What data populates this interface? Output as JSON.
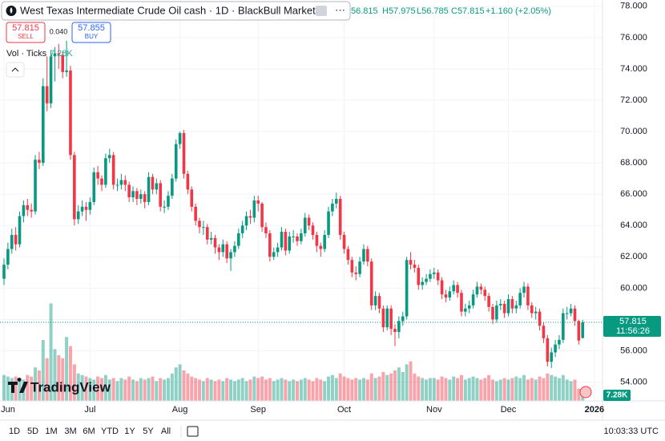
{
  "chart_data": {
    "type": "candlestick",
    "title": "West Texas Intermediate Crude Oil cash · 1D · BlackBull Markets",
    "header": {
      "open_value": "56.815",
      "high": "H57.975",
      "low": "L56.785",
      "close": "C57.815",
      "change": "+1.160 (+2.05%)"
    },
    "sell_price": "57.815",
    "sell_label": "SELL",
    "spread": "0.040",
    "buy_price": "57.855",
    "buy_label": "BUY",
    "volume_title": "Vol · Ticks",
    "last_volume_label": "7.28K",
    "countdown": "11:56:26",
    "categories": [
      "Jun",
      null,
      null,
      null,
      null,
      null,
      null,
      null,
      null,
      null,
      null,
      null,
      null,
      null,
      null,
      null,
      null,
      null,
      null,
      null,
      null,
      null,
      "Jul",
      null,
      null,
      null,
      null,
      null,
      null,
      null,
      null,
      null,
      null,
      null,
      null,
      null,
      null,
      null,
      null,
      null,
      null,
      null,
      null,
      null,
      null,
      "Aug",
      null,
      null,
      null,
      null,
      null,
      null,
      null,
      null,
      null,
      null,
      null,
      null,
      null,
      null,
      null,
      null,
      null,
      null,
      null,
      "Sep",
      null,
      null,
      null,
      null,
      null,
      null,
      null,
      null,
      null,
      null,
      null,
      null,
      null,
      null,
      null,
      null,
      null,
      null,
      null,
      null,
      null,
      "Oct",
      null,
      null,
      null,
      null,
      null,
      null,
      null,
      null,
      null,
      null,
      null,
      null,
      null,
      null,
      null,
      null,
      null,
      null,
      null,
      null,
      null,
      null,
      "Nov",
      null,
      null,
      null,
      null,
      null,
      null,
      null,
      null,
      null,
      null,
      null,
      null,
      null,
      null,
      null,
      null,
      null,
      null,
      "Dec",
      null,
      null,
      null,
      null,
      null,
      null,
      null,
      null,
      null,
      null,
      null,
      null,
      null,
      null,
      null,
      null,
      null,
      null,
      null,
      null,
      null,
      "2026"
    ],
    "open": [
      60.6,
      61.5,
      62.5,
      63.4,
      62.8,
      64.6,
      65.3,
      65.0,
      64.9,
      68.2,
      68.0,
      72.9,
      71.8,
      74.8,
      75.0,
      74.9,
      73.8,
      73.9,
      68.5,
      64.4,
      64.9,
      65.2,
      65.0,
      65.5,
      67.4,
      67.0,
      66.6,
      68.3,
      68.5,
      66.6,
      66.6,
      66.9,
      66.6,
      65.8,
      66.2,
      65.7,
      66.0,
      65.5,
      67.1,
      66.3,
      66.7,
      65.2,
      65.2,
      65.9,
      67.0,
      69.2,
      69.9,
      67.3,
      66.3,
      65.2,
      64.3,
      63.9,
      63.9,
      63.1,
      63.2,
      62.6,
      62.3,
      62.8,
      61.9,
      62.3,
      62.7,
      63.5,
      64.0,
      64.6,
      64.5,
      65.6,
      65.4,
      63.9,
      63.5,
      62.0,
      62.3,
      62.6,
      63.6,
      62.4,
      63.3,
      63.3,
      63.0,
      63.5,
      64.5,
      64.0,
      63.4,
      62.7,
      62.5,
      63.4,
      64.9,
      65.4,
      65.7,
      63.4,
      62.5,
      61.8,
      61.0,
      60.9,
      61.7,
      62.5,
      61.7,
      58.9,
      59.5,
      58.7,
      57.5,
      58.7,
      57.4,
      57.2,
      57.9,
      58.2,
      61.8,
      61.5,
      61.3,
      60.2,
      60.4,
      60.6,
      60.9,
      61.0,
      60.5,
      59.6,
      59.4,
      59.8,
      60.2,
      59.7,
      58.5,
      58.7,
      58.9,
      59.6,
      60.1,
      59.9,
      59.5,
      58.8,
      58.0,
      58.9,
      59.0,
      58.4,
      59.3,
      58.7,
      58.9,
      59.7,
      60.1,
      58.9,
      58.4,
      58.5,
      57.6,
      56.8,
      55.3,
      55.9,
      56.4,
      56.7,
      58.4,
      58.4,
      58.7,
      57.9,
      56.815,
      null,
      null,
      null
    ],
    "high": [
      61.9,
      62.9,
      63.8,
      63.9,
      64.9,
      65.6,
      65.7,
      65.4,
      68.5,
      68.7,
      73.4,
      74.8,
      75.2,
      75.4,
      75.6,
      75.1,
      75.8,
      74.2,
      68.7,
      65.3,
      65.6,
      65.5,
      65.8,
      67.7,
      67.8,
      67.2,
      68.6,
      68.9,
      68.7,
      67.0,
      67.3,
      67.2,
      66.8,
      66.5,
      66.4,
      66.3,
      66.2,
      67.4,
      67.3,
      67.0,
      66.9,
      65.6,
      66.2,
      67.3,
      69.5,
      70.0,
      70.1,
      67.5,
      66.5,
      65.4,
      64.5,
      64.3,
      64.1,
      63.6,
      63.4,
      62.8,
      63.1,
      63.0,
      62.5,
      63.0,
      63.8,
      64.3,
      64.9,
      65.0,
      65.9,
      65.9,
      65.5,
      64.2,
      63.7,
      62.6,
      62.9,
      63.9,
      63.8,
      63.6,
      63.7,
      63.5,
      63.8,
      64.8,
      64.7,
      64.2,
      63.6,
      62.9,
      63.7,
      65.2,
      65.7,
      66.1,
      65.9,
      63.6,
      62.7,
      62.0,
      61.4,
      62.0,
      62.8,
      62.7,
      61.9,
      59.8,
      59.7,
      58.9,
      58.9,
      58.9,
      57.7,
      58.2,
      58.5,
      62.0,
      62.3,
      61.8,
      61.5,
      60.7,
      60.9,
      61.2,
      61.3,
      61.2,
      60.7,
      59.9,
      60.1,
      60.5,
      60.4,
      59.9,
      59.0,
      59.2,
      59.9,
      60.4,
      60.3,
      60.1,
      59.7,
      59.0,
      59.2,
      59.3,
      59.2,
      59.6,
      59.5,
      59.2,
      60.0,
      60.4,
      60.3,
      59.1,
      58.8,
      58.7,
      57.8,
      57.0,
      56.2,
      56.7,
      57.0,
      58.7,
      58.8,
      59.0,
      58.9,
      58.0,
      57.975,
      null,
      null,
      null
    ],
    "low": [
      60.2,
      61.2,
      62.2,
      62.4,
      62.6,
      64.2,
      64.6,
      64.5,
      64.7,
      67.6,
      67.8,
      71.3,
      71.5,
      73.2,
      74.0,
      73.4,
      73.5,
      68.2,
      64.0,
      64.1,
      64.6,
      64.3,
      64.7,
      65.3,
      66.6,
      66.2,
      66.4,
      68.0,
      66.3,
      66.2,
      66.3,
      66.2,
      65.5,
      65.5,
      65.3,
      65.4,
      65.1,
      65.3,
      66.0,
      66.0,
      64.9,
      64.8,
      65.0,
      65.7,
      66.8,
      68.9,
      67.0,
      66.0,
      64.9,
      64.0,
      63.5,
      63.4,
      62.8,
      62.8,
      62.2,
      61.8,
      62.0,
      61.6,
      61.1,
      62.0,
      62.5,
      63.2,
      63.7,
      64.1,
      64.2,
      64.9,
      63.6,
      63.2,
      61.7,
      61.8,
      62.0,
      62.4,
      62.1,
      62.2,
      62.9,
      62.7,
      62.8,
      63.3,
      63.7,
      63.1,
      62.3,
      62.0,
      62.3,
      63.2,
      64.6,
      65.1,
      63.1,
      62.2,
      61.5,
      60.7,
      60.5,
      60.7,
      61.5,
      61.4,
      58.6,
      58.6,
      58.4,
      57.2,
      57.3,
      57.0,
      56.3,
      56.8,
      57.6,
      58.0,
      61.2,
      61.0,
      59.9,
      59.9,
      60.2,
      60.4,
      60.6,
      60.2,
      59.3,
      59.1,
      59.2,
      59.6,
      59.4,
      58.2,
      58.2,
      58.4,
      58.7,
      59.4,
      59.6,
      59.2,
      58.5,
      57.7,
      57.8,
      58.6,
      58.1,
      58.2,
      58.4,
      58.4,
      58.7,
      59.4,
      58.6,
      58.1,
      58.0,
      57.3,
      56.5,
      55.0,
      54.9,
      55.6,
      56.1,
      56.5,
      58.0,
      58.2,
      57.6,
      56.4,
      56.785,
      null,
      null,
      null
    ],
    "close": [
      61.5,
      62.5,
      63.4,
      62.8,
      64.6,
      65.3,
      65.0,
      64.9,
      68.2,
      68.0,
      72.9,
      71.8,
      74.8,
      75.0,
      74.9,
      73.8,
      73.9,
      68.5,
      64.4,
      64.9,
      65.2,
      65.0,
      65.5,
      67.4,
      67.0,
      66.6,
      68.3,
      68.5,
      66.6,
      66.6,
      66.9,
      66.6,
      65.8,
      66.2,
      65.7,
      66.0,
      65.5,
      67.1,
      66.3,
      66.7,
      65.2,
      65.2,
      65.9,
      67.0,
      69.2,
      69.9,
      67.3,
      66.3,
      65.2,
      64.3,
      63.9,
      63.9,
      63.1,
      63.2,
      62.6,
      62.3,
      62.8,
      61.9,
      62.3,
      62.7,
      63.5,
      64.0,
      64.6,
      64.5,
      65.6,
      65.4,
      63.9,
      63.5,
      62.0,
      62.3,
      62.6,
      63.6,
      62.4,
      63.3,
      63.3,
      63.0,
      63.5,
      64.5,
      64.0,
      63.4,
      62.7,
      62.5,
      63.4,
      64.9,
      65.4,
      65.7,
      63.4,
      62.5,
      61.8,
      61.0,
      60.9,
      61.7,
      62.5,
      61.7,
      58.9,
      59.5,
      58.7,
      57.5,
      58.7,
      57.4,
      57.2,
      57.9,
      58.2,
      61.8,
      61.5,
      61.3,
      60.2,
      60.4,
      60.6,
      60.9,
      61.0,
      60.5,
      59.6,
      59.4,
      59.8,
      60.2,
      59.7,
      58.5,
      58.7,
      58.9,
      59.6,
      60.1,
      59.9,
      59.5,
      58.8,
      58.0,
      58.9,
      59.0,
      58.4,
      59.3,
      58.7,
      58.9,
      59.7,
      60.1,
      58.9,
      58.4,
      58.5,
      57.6,
      56.8,
      55.3,
      55.9,
      56.4,
      56.7,
      58.4,
      58.4,
      58.7,
      57.9,
      56.655,
      57.815,
      null,
      null,
      null
    ],
    "volume": [
      17,
      16,
      15,
      16,
      15,
      14,
      17,
      16,
      22,
      20,
      40,
      28,
      64,
      34,
      30,
      28,
      42,
      36,
      24,
      18,
      17,
      16,
      15,
      14,
      16,
      15,
      17,
      14,
      15,
      13,
      15,
      14,
      16,
      14,
      13,
      15,
      14,
      15,
      16,
      13,
      15,
      14,
      15,
      18,
      22,
      24,
      20,
      18,
      16,
      15,
      14,
      13,
      15,
      14,
      13,
      14,
      13,
      15,
      14,
      13,
      14,
      15,
      13,
      14,
      16,
      15,
      16,
      14,
      15,
      13,
      14,
      15,
      14,
      13,
      14,
      13,
      14,
      15,
      14,
      13,
      15,
      14,
      13,
      16,
      17,
      15,
      18,
      16,
      15,
      14,
      15,
      14,
      15,
      14,
      18,
      15,
      16,
      19,
      17,
      18,
      20,
      22,
      19,
      24,
      26,
      18,
      16,
      15,
      14,
      15,
      15,
      14,
      16,
      15,
      14,
      16,
      15,
      17,
      14,
      15,
      16,
      15,
      14,
      15,
      17,
      14,
      13,
      14,
      15,
      14,
      15,
      16,
      15,
      17,
      14,
      15,
      14,
      16,
      15,
      18,
      17,
      16,
      15,
      17,
      14,
      13,
      14,
      8,
      7.28,
      null,
      null,
      null
    ],
    "up_color": "#089981",
    "down_color": "#f23645",
    "ylim": [
      52.8,
      78.4
    ],
    "yticks": [
      {
        "value": 54,
        "label": "54.000"
      },
      {
        "value": 56,
        "label": "56.000"
      },
      {
        "value": 58,
        "label": "58.000"
      },
      {
        "value": 60,
        "label": "60.000"
      },
      {
        "value": 62,
        "label": "62.000"
      },
      {
        "value": 64,
        "label": "64.000"
      },
      {
        "value": 66,
        "label": "66.000"
      },
      {
        "value": 68,
        "label": "68.000"
      },
      {
        "value": 70,
        "label": "70.000"
      },
      {
        "value": 72,
        "label": "72.000"
      },
      {
        "value": 74,
        "label": "74.000"
      },
      {
        "value": 76,
        "label": "76.000"
      },
      {
        "value": 78,
        "label": "78.000"
      }
    ],
    "grid": true
  },
  "logo": "TradingView",
  "toolbar": {
    "ranges": [
      "1D",
      "5D",
      "1M",
      "3M",
      "6M",
      "YTD",
      "1Y",
      "5Y",
      "All"
    ],
    "clock": "10:03:33 UTC"
  }
}
